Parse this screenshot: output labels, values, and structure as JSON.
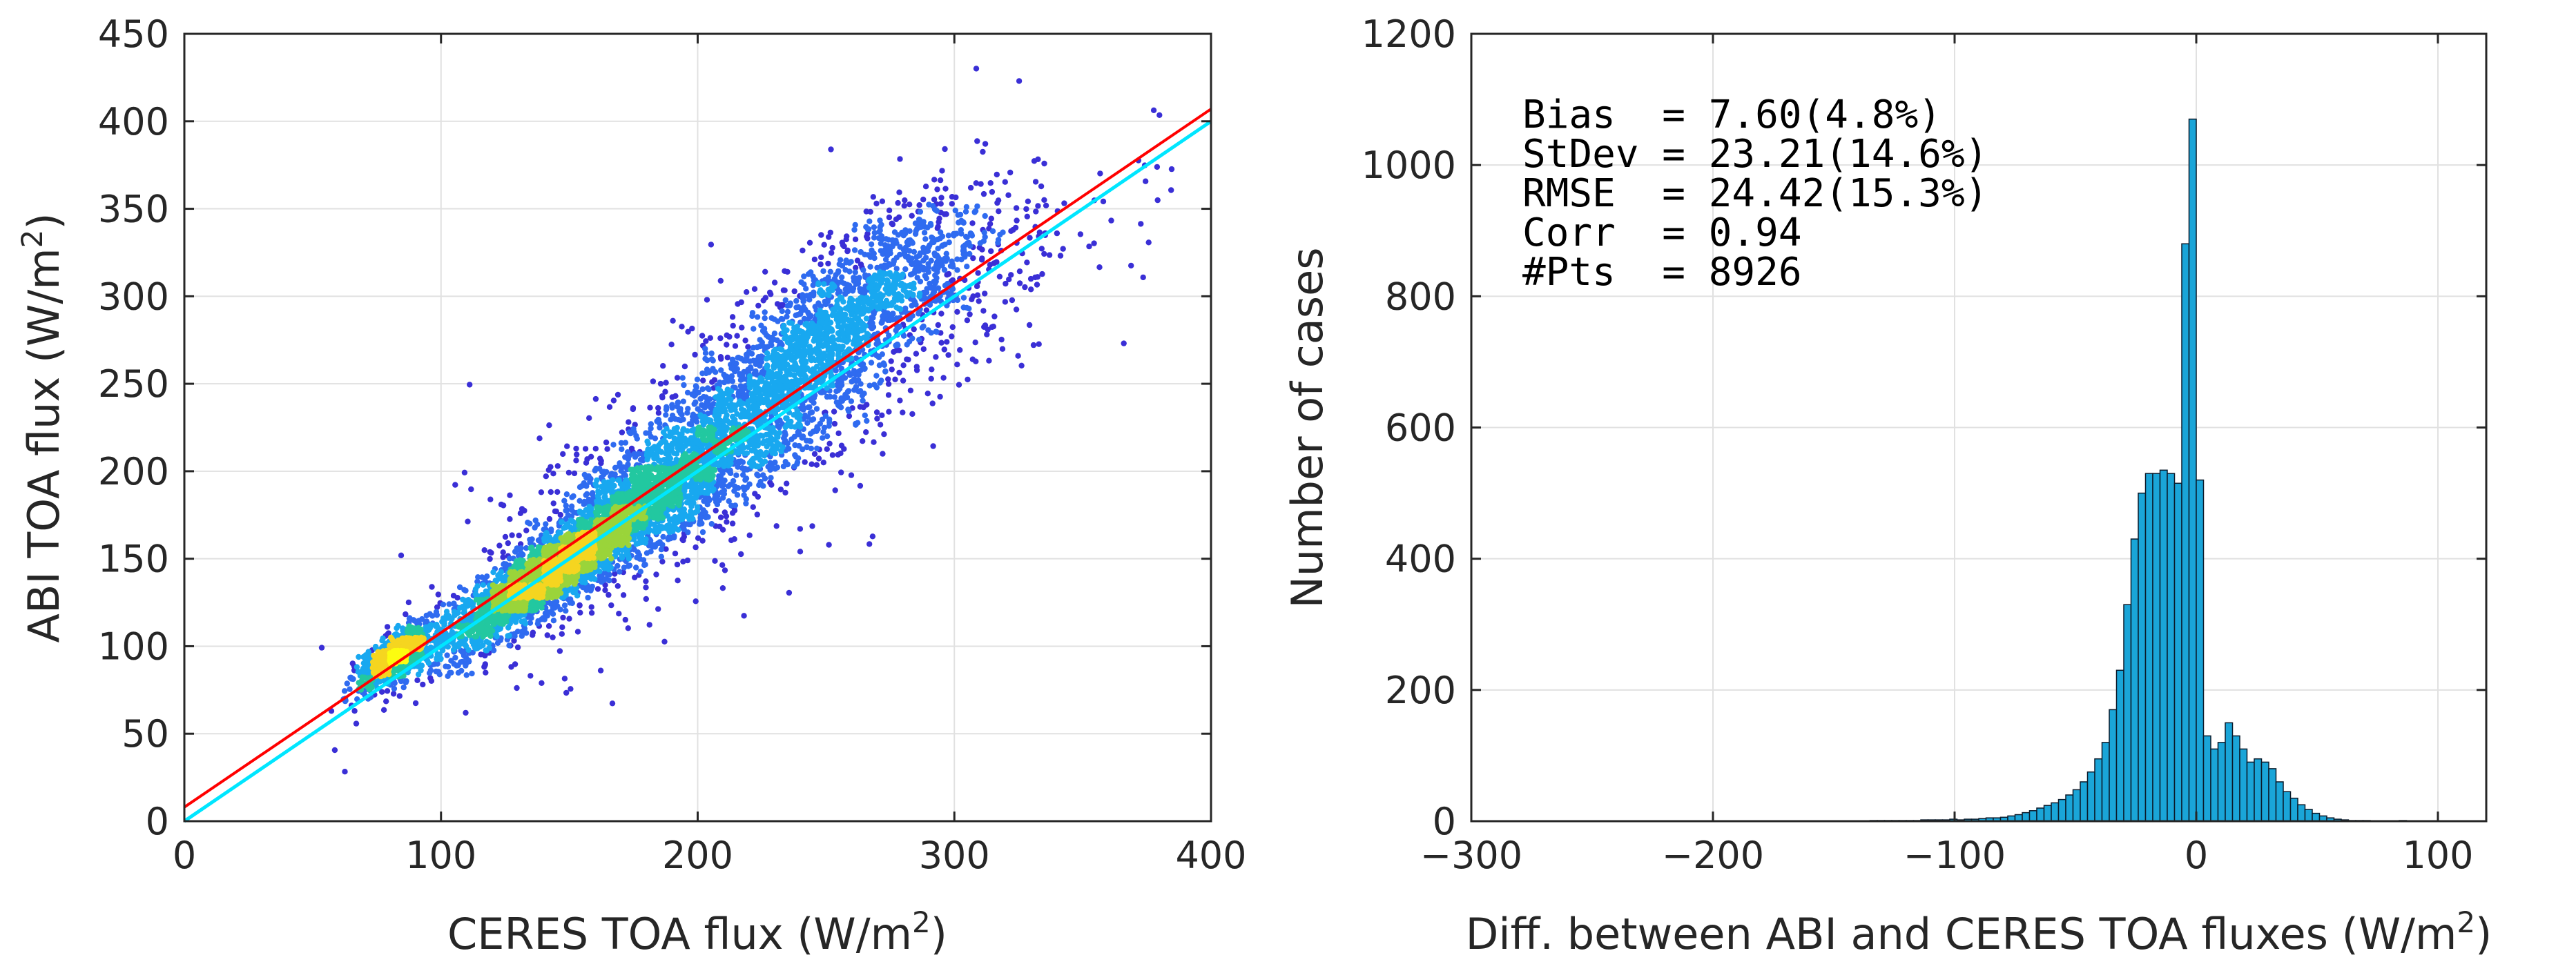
{
  "colors": {
    "regression_line": "#ff0000",
    "identity_line": "#00e6ff",
    "hist_fill": "#1aa5d8",
    "hist_edge": "#0a1a2a",
    "density_scale": [
      "#3a2fd6",
      "#2f6bf0",
      "#18a8f0",
      "#22c8a0",
      "#9ad43a",
      "#f5d520",
      "#fcfc10"
    ]
  },
  "chart_data": [
    {
      "type": "scatter",
      "title": "",
      "xlabel": "CERES TOA flux (W/m",
      "xlabel_sup": "2",
      "xlabel_tail": ")",
      "ylabel": "ABI TOA flux (W/m",
      "ylabel_sup": "2",
      "ylabel_tail": ")",
      "xlim": [
        0,
        400
      ],
      "ylim": [
        0,
        450
      ],
      "xticks": [
        "0",
        "100",
        "200",
        "300",
        "400"
      ],
      "yticks": [
        "0",
        "50",
        "100",
        "150",
        "200",
        "250",
        "300",
        "350",
        "400",
        "450"
      ],
      "grid": true,
      "lines": [
        {
          "name": "regression",
          "color_key": "regression_line",
          "x": [
            0,
            400
          ],
          "y": [
            8,
            407
          ]
        },
        {
          "name": "1:1",
          "color_key": "identity_line",
          "x": [
            0,
            400
          ],
          "y": [
            0,
            400
          ]
        }
      ],
      "point_clusters": [
        {
          "name": "core",
          "cx": 140,
          "cy": 140,
          "sx": 22,
          "sy": 18,
          "count": 2600
        },
        {
          "name": "dense-low",
          "cx": 82,
          "cy": 94,
          "sx": 7,
          "sy": 5,
          "count": 900
        },
        {
          "name": "mid",
          "cx": 190,
          "cy": 195,
          "sx": 30,
          "sy": 32,
          "count": 2200
        },
        {
          "name": "upper",
          "cx": 255,
          "cy": 285,
          "sx": 28,
          "sy": 40,
          "count": 1500
        },
        {
          "name": "spread",
          "cx": 230,
          "cy": 235,
          "sx": 60,
          "sy": 65,
          "count": 900
        }
      ],
      "n_points": 8926
    },
    {
      "type": "bar",
      "title": "",
      "xlabel": "Diff. between ABI and CERES TOA fluxes (W/m",
      "xlabel_sup": "2",
      "xlabel_tail": ")",
      "ylabel": "Number of cases",
      "xlim": [
        -300,
        120
      ],
      "ylim": [
        0,
        1200
      ],
      "xticks": [
        "−300",
        "−200",
        "−100",
        "0",
        "100"
      ],
      "xtick_values": [
        -300,
        -200,
        -100,
        0,
        100
      ],
      "yticks": [
        "0",
        "200",
        "400",
        "600",
        "800",
        "1000",
        "1200"
      ],
      "grid": true,
      "bin_width": 3,
      "bin_start": -300,
      "values": [
        0,
        0,
        0,
        0,
        0,
        0,
        0,
        0,
        0,
        0,
        0,
        0,
        0,
        0,
        0,
        0,
        0,
        0,
        0,
        0,
        0,
        0,
        0,
        0,
        0,
        0,
        0,
        0,
        0,
        0,
        0,
        0,
        0,
        0,
        0,
        0,
        0,
        0,
        0,
        0,
        0,
        0,
        0,
        0,
        0,
        0,
        0,
        0,
        0,
        0,
        0,
        0,
        0,
        0,
        0,
        1,
        1,
        1,
        1,
        1,
        1,
        1,
        2,
        2,
        2,
        2,
        3,
        2,
        3,
        3,
        4,
        5,
        5,
        6,
        8,
        10,
        13,
        16,
        20,
        24,
        28,
        33,
        40,
        48,
        60,
        75,
        95,
        120,
        170,
        230,
        330,
        430,
        500,
        530,
        530,
        535,
        530,
        515,
        880,
        1070,
        520,
        130,
        110,
        120,
        150,
        130,
        110,
        90,
        95,
        90,
        80,
        60,
        45,
        35,
        25,
        18,
        12,
        8,
        5,
        3,
        2,
        1,
        1,
        1,
        0,
        0,
        0,
        0,
        1,
        0,
        0,
        0
      ],
      "stats": [
        {
          "label": "Bias  = 7.60(4.8%)"
        },
        {
          "label": "StDev = 23.21(14.6%)"
        },
        {
          "label": "RMSE  = 24.42(15.3%)"
        },
        {
          "label": "Corr  = 0.94"
        },
        {
          "label": "#Pts  = 8926"
        }
      ]
    }
  ]
}
